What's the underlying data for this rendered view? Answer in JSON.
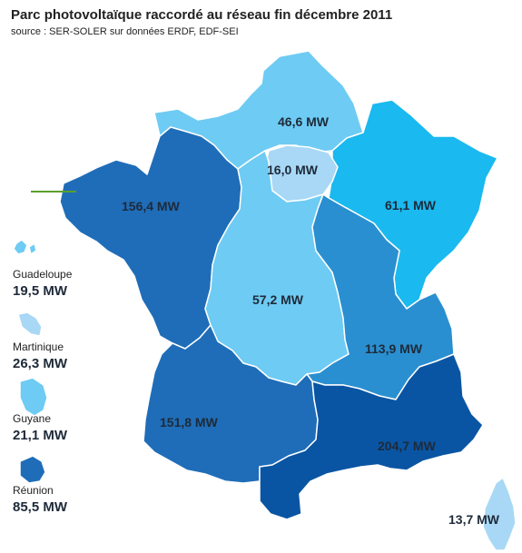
{
  "title": "Parc photovoltaïque raccordé au réseau fin décembre 2011",
  "source": "source : SER-SOLER sur données ERDF, EDF-SEI",
  "colors": {
    "lightest": "#a8d8f5",
    "light": "#6ecbf3",
    "cyan": "#1ab9ef",
    "mid": "#2a8fd0",
    "dark": "#1f6db8",
    "darkest": "#0a55a3",
    "line": "#5aa02c"
  },
  "regions": [
    {
      "id": "nord",
      "value": "46,6 MW"
    },
    {
      "id": "idf",
      "value": "16,0 MW"
    },
    {
      "id": "est",
      "value": "61,1 MW"
    },
    {
      "id": "ouest",
      "value": "156,4 MW"
    },
    {
      "id": "centre",
      "value": "57,2 MW"
    },
    {
      "id": "rhone-alpes",
      "value": "113,9 MW"
    },
    {
      "id": "sud-ouest",
      "value": "151,8 MW"
    },
    {
      "id": "sud-est",
      "value": "204,7 MW"
    },
    {
      "id": "corse",
      "value": "13,7 MW"
    }
  ],
  "overseas": [
    {
      "id": "guadeloupe",
      "name": "Guadeloupe",
      "value": "19,5 MW"
    },
    {
      "id": "martinique",
      "name": "Martinique",
      "value": "26,3 MW"
    },
    {
      "id": "guyane",
      "name": "Guyane",
      "value": "21,1 MW"
    },
    {
      "id": "reunion",
      "name": "Réunion",
      "value": "85,5 MW"
    }
  ]
}
